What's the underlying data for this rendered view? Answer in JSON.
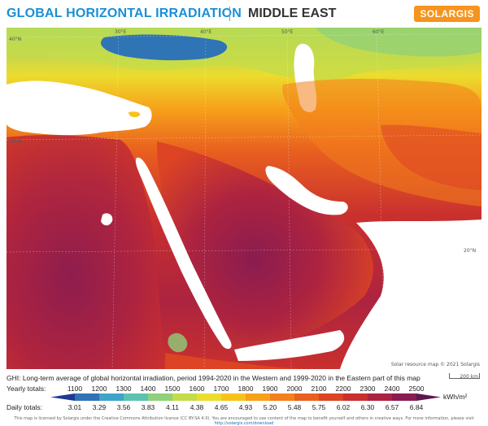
{
  "header": {
    "title": "GLOBAL HORIZONTAL IRRADIATION",
    "region": "MIDDLE EAST",
    "logo": "SOLARGIS"
  },
  "map": {
    "longitude_labels": [
      "30°E",
      "40°E",
      "50°E",
      "60°E"
    ],
    "latitude_labels": [
      "40°N",
      "30°N",
      "20°N"
    ],
    "attribution": "Solar resource map © 2021 Solargis",
    "scale_label": "200 km"
  },
  "caption": "GHI: Long-term average of global horizontal irradiation, period 1994-2020 in the Western and 1999-2020 in the Eastern part of this map",
  "legend": {
    "yearly_label": "Yearly totals:",
    "daily_label": "Daily totals:",
    "yearly_values": [
      "1100",
      "1200",
      "1300",
      "1400",
      "1500",
      "1600",
      "1700",
      "1800",
      "1900",
      "2000",
      "2100",
      "2200",
      "2300",
      "2400",
      "2500"
    ],
    "daily_values": [
      "3.01",
      "3.29",
      "3.56",
      "3.83",
      "4.11",
      "4.38",
      "4.65",
      "4.93",
      "5.20",
      "5.48",
      "5.75",
      "6.02",
      "6.30",
      "6.57",
      "6.84"
    ],
    "unit": "kWh/m²",
    "colors": [
      "#1f3a93",
      "#2f74b5",
      "#3ea4c8",
      "#5cc2b0",
      "#8fd07a",
      "#c4dc4a",
      "#ecdc2e",
      "#f8c21c",
      "#f7a01a",
      "#f2801c",
      "#e9601f",
      "#dc4424",
      "#c9302e",
      "#ad2340",
      "#8a1c4f",
      "#5d1650"
    ]
  },
  "footer": {
    "text": "This map is licensed by Solargis under the Creative Commons Attribution license (CC BY-SA 4.0). You are encouraged to use content of the map to benefit yourself and others in creative ways. For more information, please visit",
    "link": "http://solargis.com/download"
  }
}
